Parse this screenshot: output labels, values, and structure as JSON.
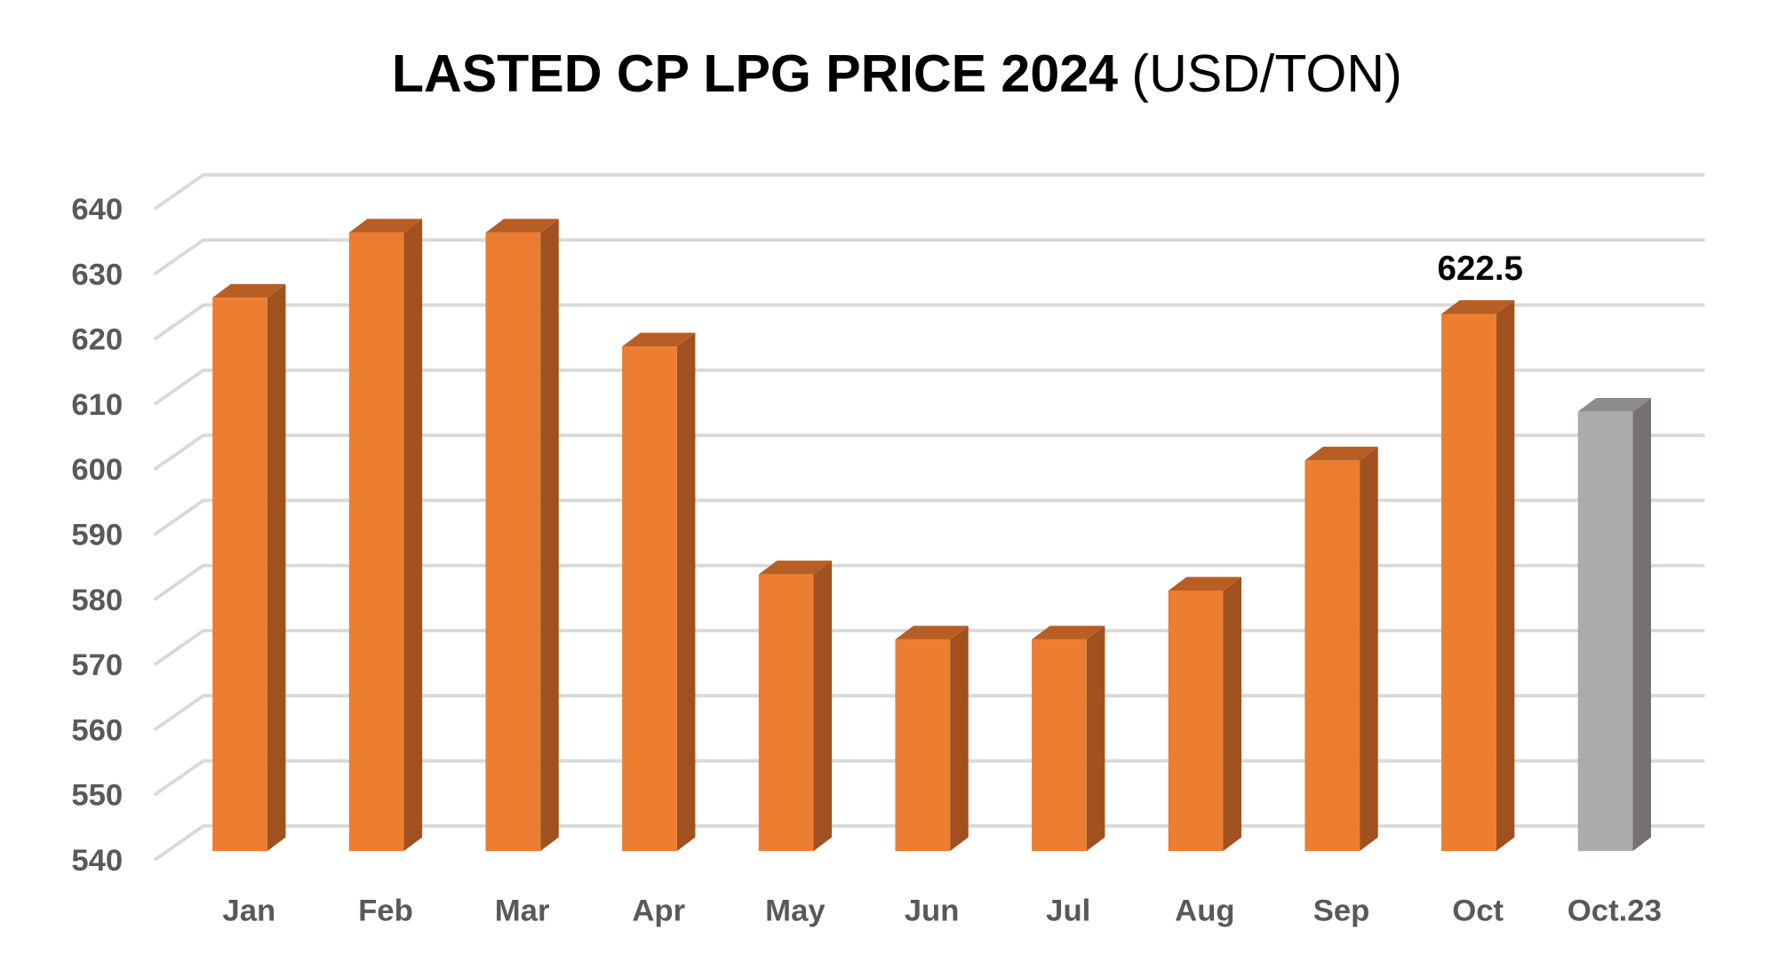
{
  "chart_data": {
    "type": "bar",
    "title": "LASTED CP LPG PRICE 2024",
    "subtitle": "(USD/TON)",
    "xlabel": "",
    "ylabel": "",
    "categories": [
      "Jan",
      "Feb",
      "Mar",
      "Apr",
      "May",
      "Jun",
      "Jul",
      "Aug",
      "Sep",
      "Oct",
      "Oct.23"
    ],
    "values": [
      625,
      635,
      635,
      617.5,
      582.5,
      572.5,
      572.5,
      580,
      600,
      622.5,
      607.5
    ],
    "ylim": [
      540,
      640
    ],
    "yticks": [
      540,
      550,
      560,
      570,
      580,
      590,
      600,
      610,
      620,
      630,
      640
    ],
    "grid": true,
    "style": "3d-column",
    "data_labels": [
      {
        "category": "Oct",
        "text": "622.5"
      }
    ],
    "colors": {
      "bar": "#ED7D31",
      "bar_side": "#A0511F",
      "bar_top": "#B85E25",
      "comparison_bar": "#ADAAAA",
      "comparison_side": "#767171",
      "comparison_top": "#8E8B8B",
      "grid": "#D9D9D9"
    }
  }
}
